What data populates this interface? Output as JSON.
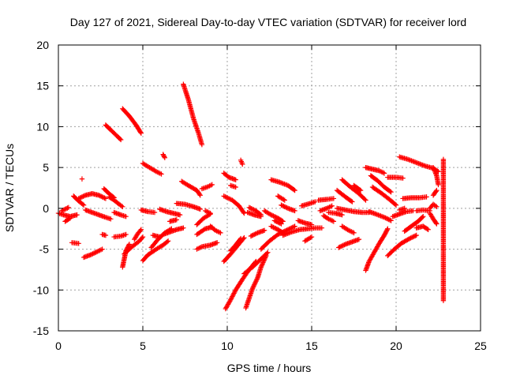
{
  "chart_data": {
    "type": "scatter",
    "title": "Day 127 of 2021, Sidereal Day-to-day VTEC variation (SDTVAR) for receiver lord",
    "xlabel": "GPS time / hours",
    "ylabel": "SDTVAR / TECUs",
    "xlim": [
      0,
      25
    ],
    "ylim": [
      -15,
      20
    ],
    "xticks": [
      0,
      5,
      10,
      15,
      20,
      25
    ],
    "yticks": [
      -15,
      -10,
      -5,
      0,
      5,
      10,
      15,
      20
    ],
    "grid": true,
    "marker": "+",
    "color": "#ff0000",
    "segments": [
      [
        [
          7.4,
          15.2
        ],
        [
          7.7,
          13.3
        ],
        [
          8.0,
          11.0
        ],
        [
          8.3,
          9.2
        ],
        [
          8.5,
          7.8
        ]
      ],
      [
        [
          3.8,
          12.2
        ],
        [
          4.2,
          11.3
        ],
        [
          4.6,
          10.2
        ],
        [
          4.9,
          9.2
        ]
      ],
      [
        [
          2.8,
          10.2
        ],
        [
          3.1,
          9.6
        ],
        [
          3.5,
          8.8
        ],
        [
          3.7,
          8.4
        ]
      ],
      [
        [
          5.0,
          5.5
        ],
        [
          5.4,
          5.0
        ],
        [
          5.8,
          4.5
        ],
        [
          6.1,
          4.2
        ]
      ],
      [
        [
          6.2,
          6.6
        ],
        [
          6.3,
          6.2
        ]
      ],
      [
        [
          10.8,
          5.9
        ],
        [
          10.9,
          5.4
        ]
      ],
      [
        [
          9.8,
          4.3
        ],
        [
          10.1,
          3.8
        ],
        [
          10.5,
          3.5
        ]
      ],
      [
        [
          10.2,
          2.8
        ],
        [
          10.5,
          2.6
        ]
      ],
      [
        [
          7.3,
          3.3
        ],
        [
          7.7,
          2.8
        ],
        [
          8.2,
          2.2
        ],
        [
          8.4,
          1.6
        ]
      ],
      [
        [
          8.5,
          2.4
        ],
        [
          8.8,
          2.6
        ],
        [
          9.1,
          2.9
        ]
      ],
      [
        [
          12.6,
          3.5
        ],
        [
          13.1,
          3.2
        ],
        [
          13.6,
          2.8
        ],
        [
          14.0,
          2.2
        ]
      ],
      [
        [
          13.0,
          1.5
        ],
        [
          13.4,
          1.0
        ]
      ],
      [
        [
          16.8,
          3.5
        ],
        [
          17.3,
          2.6
        ],
        [
          17.8,
          1.8
        ],
        [
          18.2,
          1.0
        ]
      ],
      [
        [
          16.5,
          2.2
        ],
        [
          17.0,
          1.4
        ],
        [
          17.4,
          0.8
        ]
      ],
      [
        [
          17.5,
          2.8
        ],
        [
          17.9,
          2.2
        ]
      ],
      [
        [
          18.2,
          5.0
        ],
        [
          18.6,
          4.8
        ],
        [
          19.0,
          4.6
        ],
        [
          19.3,
          4.3
        ]
      ],
      [
        [
          18.5,
          4.0
        ],
        [
          18.9,
          3.4
        ],
        [
          19.3,
          2.6
        ],
        [
          19.7,
          2.0
        ]
      ],
      [
        [
          19.5,
          3.8
        ],
        [
          20.0,
          3.8
        ],
        [
          20.4,
          3.7
        ]
      ],
      [
        [
          20.2,
          6.3
        ],
        [
          20.7,
          6.0
        ],
        [
          21.2,
          5.6
        ],
        [
          21.7,
          5.2
        ],
        [
          22.2,
          4.9
        ],
        [
          22.5,
          4.5
        ]
      ],
      [
        [
          22.2,
          5.0
        ],
        [
          22.4,
          4.0
        ],
        [
          22.5,
          2.9
        ]
      ],
      [
        [
          20.4,
          1.2
        ],
        [
          20.9,
          1.3
        ],
        [
          21.4,
          1.3
        ],
        [
          21.8,
          1.4
        ]
      ],
      [
        [
          22.2,
          1.6
        ],
        [
          22.4,
          2.2
        ]
      ],
      [
        [
          18.6,
          2.6
        ],
        [
          19.1,
          1.9
        ],
        [
          19.6,
          1.1
        ],
        [
          20.0,
          0.4
        ]
      ],
      [
        [
          15.4,
          1.0
        ],
        [
          15.9,
          1.1
        ],
        [
          16.3,
          1.2
        ]
      ],
      [
        [
          13.2,
          0.4
        ],
        [
          13.6,
          0.0
        ],
        [
          14.0,
          -0.3
        ]
      ],
      [
        [
          14.4,
          0.3
        ],
        [
          14.9,
          0.6
        ],
        [
          15.2,
          0.8
        ]
      ],
      [
        [
          9.8,
          1.5
        ],
        [
          10.3,
          1.0
        ],
        [
          10.7,
          0.3
        ],
        [
          11.0,
          -0.6
        ]
      ],
      [
        [
          11.2,
          -0.5
        ],
        [
          11.6,
          -0.8
        ],
        [
          12.0,
          -1.0
        ]
      ],
      [
        [
          11.3,
          0.1
        ],
        [
          11.7,
          -0.3
        ],
        [
          12.0,
          -0.8
        ]
      ],
      [
        [
          12.2,
          -0.3
        ],
        [
          12.6,
          -0.8
        ],
        [
          13.0,
          -1.2
        ],
        [
          13.3,
          -1.6
        ]
      ],
      [
        [
          7.0,
          0.6
        ],
        [
          7.5,
          0.5
        ],
        [
          8.0,
          0.2
        ],
        [
          8.4,
          -0.1
        ]
      ],
      [
        [
          6.0,
          -0.1
        ],
        [
          6.4,
          -0.4
        ],
        [
          6.8,
          -0.6
        ],
        [
          7.2,
          -0.8
        ]
      ],
      [
        [
          4.9,
          -0.2
        ],
        [
          5.3,
          -0.4
        ],
        [
          5.7,
          -0.5
        ]
      ],
      [
        [
          8.7,
          -0.3
        ],
        [
          9.0,
          -0.6
        ]
      ],
      [
        [
          1.2,
          1.2
        ],
        [
          1.6,
          1.6
        ],
        [
          2.0,
          1.8
        ],
        [
          2.4,
          1.6
        ],
        [
          2.8,
          1.2
        ]
      ],
      [
        [
          0.9,
          1.5
        ],
        [
          1.2,
          0.9
        ],
        [
          1.5,
          0.4
        ]
      ],
      [
        [
          3.0,
          1.4
        ],
        [
          3.3,
          1.0
        ],
        [
          3.6,
          0.5
        ],
        [
          3.8,
          0.2
        ]
      ],
      [
        [
          2.7,
          2.4
        ],
        [
          3.0,
          1.8
        ],
        [
          3.3,
          1.3
        ]
      ],
      [
        [
          1.4,
          3.6
        ]
      ],
      [
        [
          0.0,
          -0.6
        ],
        [
          0.3,
          -0.8
        ],
        [
          0.7,
          -1.0
        ],
        [
          1.1,
          -0.8
        ]
      ],
      [
        [
          0.2,
          -0.3
        ],
        [
          0.6,
          0.1
        ]
      ],
      [
        [
          0.4,
          -1.6
        ],
        [
          0.7,
          -1.2
        ]
      ],
      [
        [
          1.6,
          -0.2
        ],
        [
          2.0,
          -0.5
        ],
        [
          2.4,
          -0.8
        ],
        [
          2.8,
          -1.1
        ],
        [
          3.1,
          -1.3
        ]
      ],
      [
        [
          3.3,
          -0.5
        ],
        [
          3.7,
          -0.8
        ],
        [
          4.0,
          -1.0
        ]
      ],
      [
        [
          0.8,
          -4.2
        ],
        [
          1.2,
          -4.3
        ]
      ],
      [
        [
          1.5,
          -6.0
        ],
        [
          1.9,
          -5.7
        ],
        [
          2.3,
          -5.3
        ],
        [
          2.6,
          -5.0
        ]
      ],
      [
        [
          2.6,
          -3.2
        ],
        [
          2.8,
          -3.3
        ]
      ],
      [
        [
          3.3,
          -3.5
        ],
        [
          3.7,
          -3.4
        ],
        [
          4.0,
          -3.2
        ]
      ],
      [
        [
          3.8,
          -7.2
        ],
        [
          3.9,
          -6.2
        ],
        [
          4.0,
          -5.2
        ],
        [
          4.2,
          -4.4
        ]
      ],
      [
        [
          3.9,
          -5.6
        ],
        [
          4.3,
          -4.8
        ],
        [
          4.8,
          -4.0
        ],
        [
          5.0,
          -3.5
        ]
      ],
      [
        [
          4.5,
          -3.8
        ],
        [
          4.7,
          -3.1
        ],
        [
          4.9,
          -2.6
        ]
      ],
      [
        [
          5.0,
          -6.4
        ],
        [
          5.3,
          -5.7
        ],
        [
          5.8,
          -5.0
        ],
        [
          6.2,
          -4.5
        ],
        [
          6.5,
          -4.0
        ]
      ],
      [
        [
          5.5,
          -4.8
        ],
        [
          5.9,
          -3.8
        ],
        [
          6.3,
          -3.0
        ],
        [
          6.7,
          -2.5
        ]
      ],
      [
        [
          6.2,
          -3.2
        ],
        [
          6.6,
          -2.9
        ],
        [
          7.0,
          -2.6
        ],
        [
          7.4,
          -2.4
        ]
      ],
      [
        [
          5.6,
          -3.3
        ],
        [
          6.0,
          -3.5
        ]
      ],
      [
        [
          6.6,
          -1.6
        ],
        [
          7.0,
          -1.4
        ]
      ],
      [
        [
          8.2,
          -2.0
        ],
        [
          8.6,
          -1.2
        ],
        [
          9.0,
          -0.7
        ]
      ],
      [
        [
          8.2,
          -3.2
        ],
        [
          8.7,
          -2.5
        ],
        [
          9.1,
          -2.3
        ]
      ],
      [
        [
          8.2,
          -5.0
        ],
        [
          8.5,
          -4.7
        ],
        [
          9.0,
          -4.5
        ],
        [
          9.4,
          -4.2
        ]
      ],
      [
        [
          9.0,
          -2.2
        ],
        [
          9.3,
          -2.7
        ],
        [
          9.6,
          -3.0
        ]
      ],
      [
        [
          9.8,
          -6.5
        ],
        [
          10.2,
          -5.6
        ],
        [
          10.6,
          -4.6
        ],
        [
          11.0,
          -3.6
        ]
      ],
      [
        [
          10.2,
          -5.2
        ],
        [
          10.5,
          -4.5
        ],
        [
          10.8,
          -3.7
        ]
      ],
      [
        [
          9.9,
          -12.3
        ],
        [
          10.2,
          -11.2
        ],
        [
          10.5,
          -10.0
        ],
        [
          10.9,
          -8.7
        ],
        [
          11.3,
          -7.5
        ],
        [
          11.7,
          -6.5
        ]
      ],
      [
        [
          11.1,
          -12.2
        ],
        [
          11.3,
          -11.0
        ],
        [
          11.5,
          -9.8
        ],
        [
          11.8,
          -8.5
        ],
        [
          12.0,
          -7.2
        ],
        [
          12.3,
          -5.8
        ]
      ],
      [
        [
          11.0,
          -8.0
        ],
        [
          11.5,
          -7.2
        ],
        [
          12.0,
          -6.2
        ],
        [
          12.4,
          -5.4
        ]
      ],
      [
        [
          12.0,
          -5.0
        ],
        [
          12.5,
          -4.0
        ],
        [
          13.0,
          -3.2
        ],
        [
          13.6,
          -2.6
        ],
        [
          14.0,
          -2.2
        ]
      ],
      [
        [
          11.4,
          -3.4
        ],
        [
          11.8,
          -3.0
        ],
        [
          12.2,
          -2.7
        ]
      ],
      [
        [
          12.6,
          -2.2
        ],
        [
          13.0,
          -2.6
        ],
        [
          13.3,
          -3.0
        ]
      ],
      [
        [
          12.8,
          -1.5
        ],
        [
          13.2,
          -1.9
        ]
      ],
      [
        [
          13.3,
          -3.3
        ],
        [
          13.8,
          -2.9
        ],
        [
          14.3,
          -2.6
        ],
        [
          14.8,
          -2.5
        ],
        [
          15.2,
          -2.4
        ],
        [
          15.6,
          -2.4
        ]
      ],
      [
        [
          14.2,
          -1.5
        ],
        [
          14.6,
          -1.8
        ],
        [
          15.0,
          -2.0
        ]
      ],
      [
        [
          14.6,
          -4.0
        ],
        [
          15.0,
          -3.5
        ]
      ],
      [
        [
          15.7,
          -0.9
        ],
        [
          16.0,
          -1.3
        ],
        [
          16.3,
          -1.6
        ]
      ],
      [
        [
          15.5,
          -0.3
        ],
        [
          15.9,
          0.0
        ],
        [
          16.2,
          0.3
        ]
      ],
      [
        [
          16.0,
          -0.5
        ],
        [
          16.4,
          -0.6
        ],
        [
          16.8,
          -0.8
        ]
      ],
      [
        [
          16.8,
          -2.2
        ],
        [
          17.2,
          -2.7
        ],
        [
          17.5,
          -3.0
        ]
      ],
      [
        [
          16.5,
          0.0
        ],
        [
          17.0,
          -0.2
        ],
        [
          17.5,
          -0.4
        ],
        [
          18.0,
          -0.5
        ],
        [
          18.4,
          -0.5
        ]
      ],
      [
        [
          16.6,
          -4.8
        ],
        [
          17.0,
          -4.4
        ],
        [
          17.4,
          -4.1
        ],
        [
          17.8,
          -3.8
        ]
      ],
      [
        [
          18.4,
          -0.4
        ],
        [
          18.8,
          -0.7
        ],
        [
          19.3,
          -1.1
        ],
        [
          19.7,
          -1.5
        ]
      ],
      [
        [
          18.2,
          -7.6
        ],
        [
          18.4,
          -6.5
        ],
        [
          18.7,
          -5.4
        ],
        [
          19.0,
          -4.3
        ],
        [
          19.3,
          -3.3
        ],
        [
          19.5,
          -2.5
        ]
      ],
      [
        [
          19.5,
          -5.8
        ],
        [
          19.9,
          -5.0
        ],
        [
          20.3,
          -4.3
        ],
        [
          20.8,
          -3.7
        ],
        [
          21.2,
          -3.3
        ]
      ],
      [
        [
          19.8,
          -1.0
        ],
        [
          20.2,
          -0.7
        ],
        [
          20.6,
          -0.4
        ],
        [
          21.0,
          -0.3
        ]
      ],
      [
        [
          20.2,
          -0.2
        ],
        [
          20.5,
          0.0
        ]
      ],
      [
        [
          20.5,
          -2.8
        ],
        [
          20.9,
          -2.2
        ],
        [
          21.3,
          -1.6
        ],
        [
          21.6,
          -1.0
        ]
      ],
      [
        [
          21.2,
          -2.4
        ],
        [
          21.6,
          -2.2
        ],
        [
          21.9,
          -2.6
        ]
      ],
      [
        [
          21.2,
          -0.3
        ],
        [
          21.6,
          -0.2
        ],
        [
          22.0,
          -0.3
        ]
      ],
      [
        [
          22.0,
          -0.6
        ],
        [
          22.2,
          -1.3
        ],
        [
          22.4,
          -1.9
        ]
      ],
      [
        [
          22.0,
          0.0
        ],
        [
          22.2,
          0.5
        ],
        [
          22.4,
          0.2
        ]
      ],
      [
        [
          22.8,
          6.0
        ],
        [
          22.8,
          4.3
        ],
        [
          22.8,
          -0.2
        ],
        [
          22.8,
          -4.0
        ],
        [
          22.8,
          -11.3
        ]
      ]
    ]
  }
}
